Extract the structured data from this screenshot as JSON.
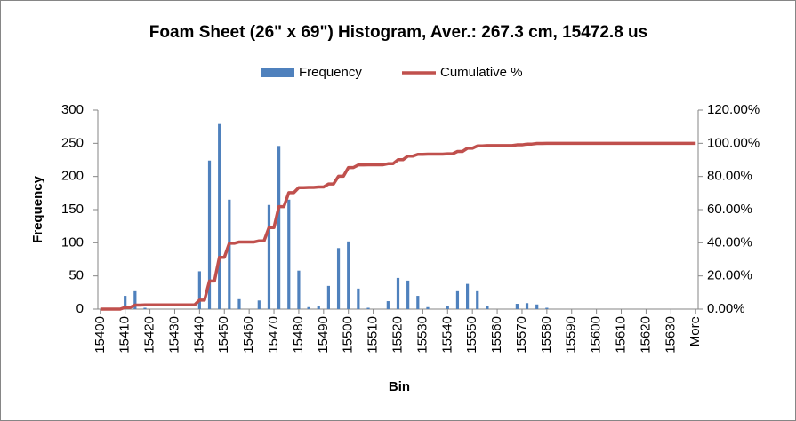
{
  "chart_data": {
    "type": "combo",
    "title": "Foam Sheet (26\" x 69\") Histogram, Aver.: 267.3 cm, 15472.8 us",
    "x_label": "Bin",
    "y_label": "Frequency",
    "categories": [
      "15400",
      null,
      null,
      null,
      null,
      "15410",
      null,
      null,
      null,
      null,
      "15420",
      null,
      null,
      null,
      null,
      "15430",
      null,
      null,
      null,
      null,
      "15440",
      null,
      null,
      null,
      null,
      "15450",
      null,
      null,
      null,
      null,
      "15460",
      null,
      null,
      null,
      null,
      "15470",
      null,
      null,
      null,
      null,
      "15480",
      null,
      null,
      null,
      null,
      "15490",
      null,
      null,
      null,
      null,
      "15500",
      null,
      null,
      null,
      null,
      "15510",
      null,
      null,
      null,
      null,
      "15520",
      null,
      null,
      null,
      null,
      "15530",
      null,
      null,
      null,
      null,
      "15540",
      null,
      null,
      null,
      null,
      "15550",
      null,
      null,
      null,
      null,
      "15560",
      null,
      null,
      null,
      null,
      "15570",
      null,
      null,
      null,
      null,
      "15580",
      null,
      null,
      null,
      null,
      "15590",
      null,
      null,
      null,
      null,
      "15600",
      null,
      null,
      null,
      null,
      "15610",
      null,
      null,
      null,
      null,
      "15620",
      null,
      null,
      null,
      null,
      "15630",
      null,
      null,
      null,
      null,
      "More"
    ],
    "series": [
      {
        "name": "Frequency",
        "type": "bar",
        "color": "#4f81bd",
        "values": [
          0,
          0,
          0,
          0,
          0,
          20,
          0,
          27,
          0,
          2,
          0,
          0,
          0,
          0,
          0,
          0,
          0,
          0,
          0,
          0,
          57,
          0,
          224,
          0,
          279,
          0,
          165,
          0,
          15,
          0,
          0,
          0,
          13,
          0,
          157,
          0,
          246,
          0,
          165,
          0,
          58,
          0,
          3,
          0,
          5,
          0,
          35,
          0,
          92,
          0,
          102,
          0,
          31,
          0,
          2,
          0,
          0,
          0,
          12,
          0,
          47,
          0,
          43,
          0,
          20,
          0,
          3,
          0,
          0,
          0,
          4,
          0,
          27,
          0,
          38,
          0,
          27,
          0,
          5,
          0,
          0,
          0,
          0,
          0,
          8,
          0,
          9,
          0,
          7,
          0,
          2,
          0,
          0,
          0,
          0,
          0,
          0,
          0,
          0,
          0,
          0,
          0,
          0,
          0,
          0,
          0,
          0,
          0,
          0,
          0,
          0,
          0,
          0,
          0,
          0,
          0,
          0,
          0,
          0,
          0,
          0
        ]
      },
      {
        "name": "Cumulative %",
        "type": "line",
        "axis": "y2",
        "color": "#c0504d",
        "values": [
          0,
          0,
          0,
          0,
          0,
          1.03,
          1.03,
          2.41,
          2.41,
          2.51,
          2.51,
          2.51,
          2.51,
          2.51,
          2.51,
          2.51,
          2.51,
          2.51,
          2.51,
          2.51,
          5.44,
          5.44,
          16.92,
          16.92,
          31.23,
          31.23,
          39.69,
          39.69,
          40.46,
          40.46,
          40.46,
          40.46,
          41.13,
          41.13,
          49.18,
          49.18,
          61.79,
          61.79,
          70.26,
          70.26,
          73.23,
          73.23,
          73.38,
          73.38,
          73.64,
          73.64,
          75.44,
          75.44,
          80.15,
          80.15,
          85.38,
          85.38,
          86.97,
          86.97,
          87.08,
          87.08,
          87.08,
          87.08,
          87.69,
          87.69,
          90.1,
          90.1,
          92.31,
          92.31,
          93.33,
          93.33,
          93.49,
          93.49,
          93.49,
          93.49,
          93.69,
          93.69,
          95.08,
          95.08,
          97.03,
          97.03,
          98.41,
          98.41,
          98.67,
          98.67,
          98.67,
          98.67,
          98.67,
          98.67,
          99.08,
          99.08,
          99.54,
          99.54,
          99.9,
          99.9,
          100,
          100,
          100,
          100,
          100,
          100,
          100,
          100,
          100,
          100,
          100,
          100,
          100,
          100,
          100,
          100,
          100,
          100,
          100,
          100,
          100,
          100,
          100,
          100,
          100,
          100,
          100,
          100,
          100,
          100,
          100
        ]
      }
    ],
    "ylim": [
      0,
      300
    ],
    "yticks": [
      0,
      50,
      100,
      150,
      200,
      250,
      300
    ],
    "y2lim": [
      0,
      120
    ],
    "y2ticks": [
      {
        "value": 0,
        "label": "0.00%"
      },
      {
        "value": 20,
        "label": "20.00%"
      },
      {
        "value": 40,
        "label": "40.00%"
      },
      {
        "value": 60,
        "label": "60.00%"
      },
      {
        "value": 80,
        "label": "80.00%"
      },
      {
        "value": 100,
        "label": "100.00%"
      },
      {
        "value": 120,
        "label": "120.00%"
      }
    ],
    "legend": "top",
    "grid": false
  }
}
